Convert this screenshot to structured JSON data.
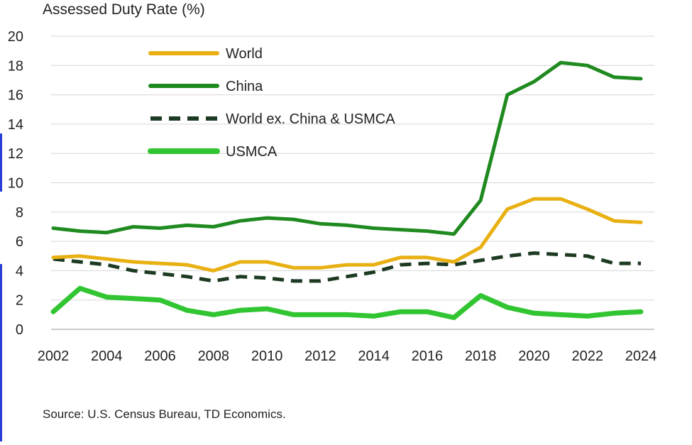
{
  "chart_data": {
    "type": "line",
    "ylabel": "Assessed Duty Rate (%)",
    "source": "Source: U.S. Census Bureau, TD Economics.",
    "x": [
      2002,
      2003,
      2004,
      2005,
      2006,
      2007,
      2008,
      2009,
      2010,
      2011,
      2012,
      2013,
      2014,
      2015,
      2016,
      2017,
      2018,
      2019,
      2020,
      2021,
      2022,
      2023,
      2024
    ],
    "xticks": [
      "2002",
      "2004",
      "2006",
      "2008",
      "2010",
      "2012",
      "2014",
      "2016",
      "2018",
      "2020",
      "2022",
      "2024"
    ],
    "yticks": [
      "0",
      "2",
      "4",
      "6",
      "8",
      "10",
      "12",
      "14",
      "16",
      "18",
      "20"
    ],
    "ylim": [
      0,
      20
    ],
    "grid": "horizontal",
    "legend_position": "top-left",
    "series": [
      {
        "name": "World",
        "color": "#e8b012",
        "style": "solid",
        "values": [
          4.9,
          5.0,
          4.8,
          4.6,
          4.5,
          4.4,
          4.0,
          4.6,
          4.6,
          4.2,
          4.2,
          4.4,
          4.4,
          4.9,
          4.9,
          4.6,
          5.6,
          8.2,
          8.9,
          8.9,
          8.2,
          7.4,
          7.3
        ]
      },
      {
        "name": "China",
        "color": "#1f8a1f",
        "style": "solid",
        "values": [
          6.9,
          6.7,
          6.6,
          7.0,
          6.9,
          7.1,
          7.0,
          7.4,
          7.6,
          7.5,
          7.2,
          7.1,
          6.9,
          6.8,
          6.7,
          6.5,
          8.8,
          16.0,
          16.9,
          18.2,
          18.0,
          17.2,
          17.1
        ]
      },
      {
        "name": "World ex. China & USMCA",
        "color": "#1d3a22",
        "style": "dashed",
        "values": [
          4.8,
          4.6,
          4.4,
          4.0,
          3.8,
          3.6,
          3.3,
          3.6,
          3.5,
          3.3,
          3.3,
          3.6,
          3.9,
          4.4,
          4.5,
          4.4,
          4.7,
          5.0,
          5.2,
          5.1,
          5.0,
          4.5,
          4.5
        ]
      },
      {
        "name": "USMCA",
        "color": "#32c532",
        "style": "solid",
        "values": [
          1.2,
          2.8,
          2.2,
          2.1,
          2.0,
          1.3,
          1.0,
          1.3,
          1.4,
          1.0,
          1.0,
          1.0,
          0.9,
          1.2,
          1.2,
          0.8,
          2.3,
          1.5,
          1.1,
          1.0,
          0.9,
          1.1,
          1.2
        ]
      }
    ]
  }
}
